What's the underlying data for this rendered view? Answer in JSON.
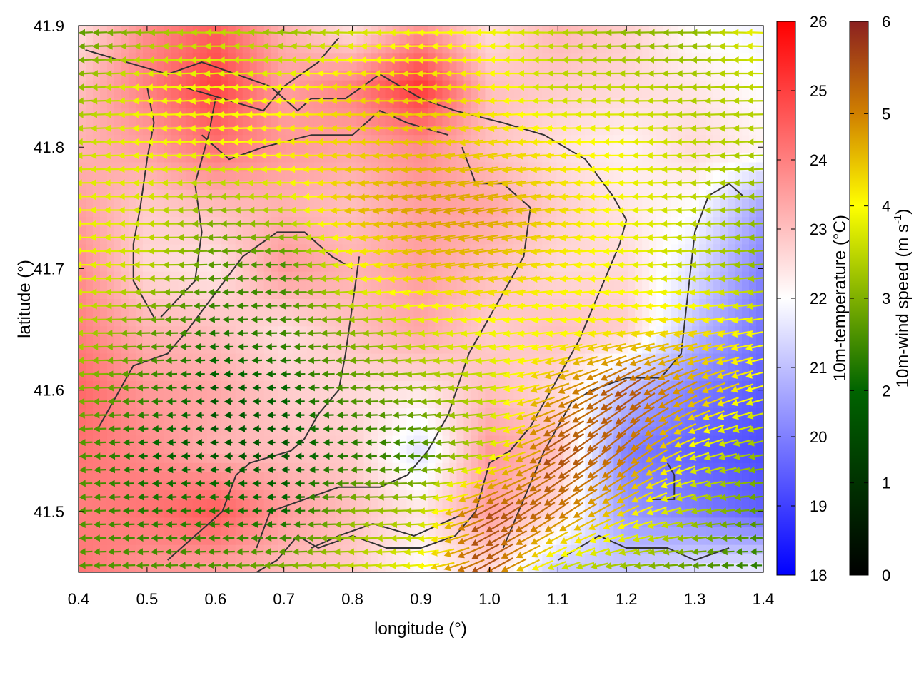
{
  "chart_data": {
    "type": "heatmap",
    "xlabel": "longitude (°)",
    "ylabel": "latitude (°)",
    "xlim": [
      0.4,
      1.4
    ],
    "ylim": [
      41.45,
      41.9
    ],
    "x_ticks": [
      "0.4",
      "0.5",
      "0.6",
      "0.7",
      "0.8",
      "0.9",
      "1.0",
      "1.1",
      "1.2",
      "1.3",
      "1.4"
    ],
    "y_ticks": [
      "41.5",
      "41.6",
      "41.7",
      "41.8",
      "41.9"
    ],
    "x_tick_values": [
      0.4,
      0.5,
      0.6,
      0.7,
      0.8,
      0.9,
      1.0,
      1.1,
      1.2,
      1.3,
      1.4
    ],
    "y_tick_values": [
      41.5,
      41.6,
      41.7,
      41.8,
      41.9
    ],
    "grid": false,
    "temperature_colorbar": {
      "label": "10m-temperature (°C)",
      "range": [
        18,
        26
      ],
      "ticks": [
        "18",
        "19",
        "20",
        "21",
        "22",
        "23",
        "24",
        "25",
        "26"
      ],
      "tick_values": [
        18,
        19,
        20,
        21,
        22,
        23,
        24,
        25,
        26
      ],
      "colors": [
        "#0000ff",
        "#ffffff",
        "#ff0000"
      ]
    },
    "wind_colorbar": {
      "label": "10m-wind speed (m s",
      "label_sup": "-1",
      "label_end": ")",
      "range": [
        0,
        6
      ],
      "ticks": [
        "0",
        "1",
        "2",
        "3",
        "4",
        "5",
        "6"
      ],
      "tick_values": [
        0,
        1,
        2,
        3,
        4,
        5,
        6
      ],
      "colors": [
        "#000000",
        "#006400",
        "#7fb000",
        "#ffff00",
        "#d08000",
        "#8b2020"
      ]
    },
    "temperature_field": {
      "lon": [
        0.4,
        0.5,
        0.6,
        0.7,
        0.8,
        0.9,
        1.0,
        1.1,
        1.2,
        1.3,
        1.4
      ],
      "lat": [
        41.9,
        41.85,
        41.8,
        41.75,
        41.7,
        41.65,
        41.6,
        41.55,
        41.5,
        41.45
      ],
      "values": [
        [
          22.5,
          23.8,
          24.5,
          23.2,
          22.4,
          23.6,
          22.5,
          23.2,
          22.8,
          22.0,
          21.8
        ],
        [
          23.0,
          24.0,
          25.0,
          23.5,
          24.0,
          25.2,
          23.0,
          22.8,
          22.6,
          22.4,
          22.0
        ],
        [
          23.2,
          23.5,
          24.2,
          23.6,
          23.4,
          23.8,
          23.0,
          22.5,
          22.2,
          22.6,
          22.2
        ],
        [
          23.5,
          22.8,
          23.0,
          23.2,
          23.0,
          23.5,
          23.4,
          22.8,
          22.4,
          22.0,
          20.5
        ],
        [
          23.8,
          22.6,
          22.4,
          23.6,
          23.2,
          23.5,
          23.0,
          22.6,
          22.6,
          21.5,
          20.0
        ],
        [
          24.0,
          23.2,
          23.0,
          22.5,
          23.0,
          23.4,
          22.8,
          23.0,
          22.8,
          21.0,
          19.8
        ],
        [
          24.4,
          23.6,
          23.4,
          22.8,
          22.6,
          22.4,
          23.0,
          22.6,
          21.0,
          20.0,
          19.4
        ],
        [
          24.2,
          23.8,
          23.2,
          23.0,
          22.8,
          21.5,
          23.6,
          23.0,
          20.0,
          19.5,
          19.2
        ],
        [
          24.0,
          24.2,
          24.6,
          23.6,
          23.0,
          22.4,
          23.5,
          22.6,
          20.4,
          20.0,
          19.5
        ],
        [
          24.2,
          23.6,
          23.4,
          23.0,
          22.8,
          22.0,
          22.6,
          21.0,
          21.2,
          21.6,
          21.8
        ]
      ]
    },
    "wind_field": {
      "lon": [
        0.4,
        0.5,
        0.6,
        0.7,
        0.8,
        0.9,
        1.0,
        1.1,
        1.2,
        1.3,
        1.4
      ],
      "lat": [
        41.9,
        41.85,
        41.8,
        41.75,
        41.7,
        41.65,
        41.6,
        41.55,
        41.5,
        41.45
      ],
      "speed": [
        [
          2.0,
          2.5,
          3.0,
          2.5,
          3.0,
          3.5,
          3.5,
          3.0,
          2.5,
          2.5,
          3.5
        ],
        [
          2.5,
          3.5,
          3.5,
          3.5,
          4.0,
          4.0,
          3.8,
          3.0,
          3.0,
          2.8,
          3.0
        ],
        [
          3.0,
          3.5,
          3.5,
          3.8,
          4.0,
          4.2,
          4.0,
          3.8,
          3.5,
          3.0,
          2.8
        ],
        [
          3.5,
          3.2,
          2.5,
          3.0,
          4.2,
          4.5,
          4.5,
          4.0,
          3.5,
          3.0,
          2.5
        ],
        [
          3.5,
          3.0,
          2.0,
          1.8,
          3.5,
          4.2,
          4.2,
          3.8,
          3.5,
          3.0,
          2.5
        ],
        [
          3.0,
          2.2,
          1.5,
          1.8,
          2.5,
          3.2,
          3.5,
          3.5,
          3.8,
          4.0,
          3.5
        ],
        [
          2.5,
          1.8,
          1.0,
          1.2,
          2.0,
          2.5,
          3.0,
          4.5,
          5.5,
          4.5,
          3.5
        ],
        [
          2.0,
          1.2,
          1.0,
          1.0,
          1.5,
          1.8,
          3.0,
          5.5,
          5.0,
          3.5,
          2.5
        ],
        [
          2.0,
          1.5,
          1.5,
          1.2,
          2.5,
          2.8,
          5.5,
          5.0,
          4.0,
          2.8,
          2.0
        ],
        [
          2.0,
          2.0,
          2.0,
          2.5,
          3.0,
          3.5,
          5.5,
          3.0,
          2.5,
          2.0,
          1.5
        ]
      ],
      "direction_to_deg": [
        [
          182,
          182,
          178,
          175,
          180,
          182,
          178,
          180,
          182,
          180,
          178
        ],
        [
          183,
          180,
          185,
          182,
          178,
          182,
          180,
          180,
          180,
          182,
          180
        ],
        [
          182,
          182,
          182,
          180,
          182,
          185,
          188,
          182,
          180,
          182,
          182
        ],
        [
          180,
          180,
          182,
          180,
          185,
          188,
          190,
          185,
          182,
          182,
          182
        ],
        [
          180,
          180,
          182,
          180,
          185,
          188,
          188,
          185,
          182,
          182,
          185
        ],
        [
          180,
          182,
          182,
          182,
          182,
          185,
          186,
          186,
          186,
          188,
          190
        ],
        [
          182,
          182,
          182,
          182,
          182,
          185,
          186,
          200,
          215,
          205,
          195
        ],
        [
          182,
          182,
          182,
          180,
          182,
          182,
          188,
          215,
          220,
          200,
          190
        ],
        [
          182,
          182,
          182,
          182,
          182,
          182,
          210,
          215,
          205,
          190,
          182
        ],
        [
          182,
          182,
          182,
          182,
          182,
          185,
          210,
          200,
          185,
          182,
          180
        ]
      ]
    },
    "contours": [
      [
        [
          0.41,
          41.88
        ],
        [
          0.47,
          41.87
        ],
        [
          0.53,
          41.86
        ],
        [
          0.58,
          41.87
        ],
        [
          0.63,
          41.86
        ],
        [
          0.68,
          41.85
        ],
        [
          0.72,
          41.83
        ],
        [
          0.74,
          41.84
        ],
        [
          0.79,
          41.84
        ],
        [
          0.84,
          41.86
        ],
        [
          0.9,
          41.84
        ],
        [
          0.95,
          41.83
        ],
        [
          1.02,
          41.82
        ],
        [
          1.08,
          41.81
        ],
        [
          1.14,
          41.79
        ],
        [
          1.18,
          41.76
        ],
        [
          1.2,
          41.74
        ],
        [
          1.19,
          41.72
        ],
        [
          1.16,
          41.68
        ],
        [
          1.13,
          41.64
        ],
        [
          1.09,
          41.6
        ],
        [
          1.06,
          41.57
        ],
        [
          1.03,
          41.55
        ],
        [
          1.0,
          41.54
        ],
        [
          0.98,
          41.5
        ],
        [
          0.95,
          41.48
        ],
        [
          0.9,
          41.47
        ],
        [
          0.85,
          41.47
        ],
        [
          0.8,
          41.48
        ],
        [
          0.75,
          41.47
        ],
        [
          0.72,
          41.48
        ],
        [
          0.69,
          41.46
        ],
        [
          0.66,
          41.45
        ]
      ],
      [
        [
          0.55,
          41.85
        ],
        [
          0.61,
          41.84
        ],
        [
          0.67,
          41.83
        ],
        [
          0.7,
          41.85
        ],
        [
          0.75,
          41.87
        ],
        [
          0.78,
          41.89
        ]
      ],
      [
        [
          0.58,
          41.81
        ],
        [
          0.62,
          41.79
        ],
        [
          0.67,
          41.8
        ],
        [
          0.74,
          41.81
        ],
        [
          0.8,
          41.81
        ],
        [
          0.84,
          41.83
        ],
        [
          0.88,
          41.82
        ],
        [
          0.94,
          41.81
        ]
      ],
      [
        [
          0.52,
          41.66
        ],
        [
          0.57,
          41.69
        ],
        [
          0.58,
          41.73
        ],
        [
          0.57,
          41.77
        ],
        [
          0.59,
          41.81
        ],
        [
          0.6,
          41.84
        ]
      ],
      [
        [
          0.51,
          41.66
        ],
        [
          0.48,
          41.69
        ],
        [
          0.48,
          41.72
        ],
        [
          0.49,
          41.75
        ],
        [
          0.5,
          41.79
        ],
        [
          0.51,
          41.82
        ],
        [
          0.5,
          41.85
        ]
      ],
      [
        [
          0.43,
          41.57
        ],
        [
          0.46,
          41.6
        ],
        [
          0.48,
          41.62
        ],
        [
          0.53,
          41.63
        ],
        [
          0.56,
          41.65
        ],
        [
          0.6,
          41.68
        ],
        [
          0.64,
          41.71
        ],
        [
          0.69,
          41.73
        ],
        [
          0.73,
          41.73
        ],
        [
          0.77,
          41.71
        ],
        [
          0.8,
          41.7
        ]
      ],
      [
        [
          0.53,
          41.46
        ],
        [
          0.57,
          41.48
        ],
        [
          0.61,
          41.5
        ],
        [
          0.63,
          41.53
        ],
        [
          0.65,
          41.54
        ],
        [
          0.71,
          41.55
        ],
        [
          0.73,
          41.56
        ],
        [
          0.75,
          41.58
        ],
        [
          0.78,
          41.6
        ],
        [
          0.79,
          41.63
        ],
        [
          0.8,
          41.67
        ],
        [
          0.81,
          41.71
        ]
      ],
      [
        [
          0.66,
          41.47
        ],
        [
          0.68,
          41.5
        ],
        [
          0.73,
          41.51
        ],
        [
          0.78,
          41.52
        ],
        [
          0.84,
          41.52
        ],
        [
          0.88,
          41.53
        ],
        [
          0.91,
          41.55
        ],
        [
          0.94,
          41.58
        ],
        [
          0.97,
          41.63
        ],
        [
          1.01,
          41.67
        ],
        [
          1.05,
          41.71
        ],
        [
          1.06,
          41.75
        ],
        [
          1.02,
          41.77
        ],
        [
          0.98,
          41.77
        ],
        [
          0.96,
          41.8
        ]
      ],
      [
        [
          0.74,
          41.47
        ],
        [
          0.78,
          41.48
        ],
        [
          0.83,
          41.49
        ],
        [
          0.89,
          41.48
        ],
        [
          0.93,
          41.49
        ],
        [
          0.97,
          41.5
        ]
      ],
      [
        [
          1.02,
          41.47
        ],
        [
          1.05,
          41.51
        ],
        [
          1.08,
          41.55
        ],
        [
          1.12,
          41.59
        ],
        [
          1.15,
          41.6
        ],
        [
          1.2,
          41.61
        ],
        [
          1.25,
          41.61
        ],
        [
          1.28,
          41.63
        ],
        [
          1.29,
          41.68
        ],
        [
          1.3,
          41.73
        ],
        [
          1.32,
          41.76
        ],
        [
          1.35,
          41.77
        ],
        [
          1.37,
          41.76
        ]
      ],
      [
        [
          1.23,
          41.51
        ],
        [
          1.27,
          41.51
        ],
        [
          1.27,
          41.53
        ],
        [
          1.26,
          41.54
        ]
      ],
      [
        [
          1.1,
          41.46
        ],
        [
          1.16,
          41.48
        ],
        [
          1.2,
          41.47
        ],
        [
          1.26,
          41.47
        ],
        [
          1.3,
          41.46
        ],
        [
          1.35,
          41.47
        ]
      ]
    ]
  }
}
